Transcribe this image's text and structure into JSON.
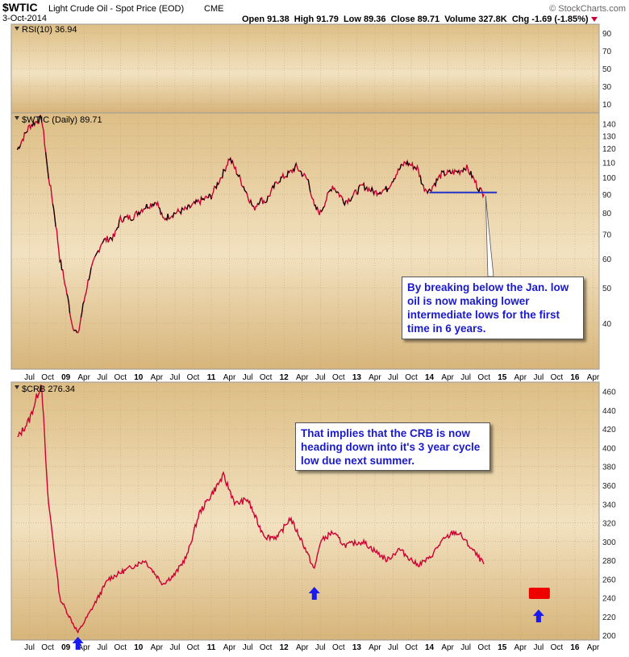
{
  "header": {
    "symbol": "$WTIC",
    "description": "Light Crude Oil - Spot Price (EOD)",
    "exchange": "CME",
    "date": "3-Oct-2014",
    "stats": "Open 91.38  High 91.79  Low 89.36  Close 89.71  Volume 327.8K  Chg -1.69 (-1.85%)",
    "credit": "© StockCharts.com"
  },
  "colors": {
    "price_line": "#cc0033",
    "dark_line": "#000000",
    "arrow": "#1a1aee",
    "box": "#ee0000",
    "support": "#2233cc"
  },
  "annotations": {
    "oil_note": "By breaking below the Jan. low oil is now making lower intermediate lows for the first time in 6 years.",
    "crb_note": "That implies that the CRB is now heading down into it's 3 year cycle low due next summer."
  },
  "chart_data": [
    {
      "type": "line",
      "panel": "rsi",
      "title": "RSI(10) 36.94",
      "last_value": 36.94,
      "ylim": [
        0,
        100
      ],
      "y_ticks": [
        10,
        30,
        50,
        70,
        90
      ],
      "series": []
    },
    {
      "type": "line",
      "panel": "price",
      "title": "$WTIC (Daily) 89.71",
      "last_value": 89.71,
      "y_scale": "log",
      "ylim": [
        30,
        150
      ],
      "y_ticks": [
        40,
        50,
        60,
        70,
        80,
        90,
        100,
        110,
        120,
        130,
        140
      ],
      "x_ticks": [
        "Jul",
        "Oct",
        "09",
        "Apr",
        "Jul",
        "Oct",
        "10",
        "Apr",
        "Jul",
        "Oct",
        "11",
        "Apr",
        "Jul",
        "Oct",
        "12",
        "Apr",
        "Jul",
        "Oct",
        "13",
        "Apr",
        "Jul",
        "Oct",
        "14",
        "Apr",
        "Jul",
        "Oct",
        "15",
        "Apr",
        "Jul",
        "Oct",
        "16",
        "Apr"
      ],
      "support_line": 91,
      "x": [
        "2008-05",
        "2008-07",
        "2008-09",
        "2008-10",
        "2008-12",
        "2009-02",
        "2009-03",
        "2009-05",
        "2009-07",
        "2009-09",
        "2009-10",
        "2009-12",
        "2010-02",
        "2010-04",
        "2010-05",
        "2010-07",
        "2010-09",
        "2010-11",
        "2011-01",
        "2011-03",
        "2011-04",
        "2011-06",
        "2011-08",
        "2011-09",
        "2011-10",
        "2011-12",
        "2012-02",
        "2012-03",
        "2012-05",
        "2012-06",
        "2012-07",
        "2012-09",
        "2012-11",
        "2012-12",
        "2013-02",
        "2013-04",
        "2013-06",
        "2013-08",
        "2013-09",
        "2013-11",
        "2013-12",
        "2014-01",
        "2014-03",
        "2014-06",
        "2014-07",
        "2014-08",
        "2014-09",
        "2014-10"
      ],
      "values": [
        119,
        138,
        145,
        104,
        60,
        40,
        37,
        55,
        67,
        69,
        77,
        78,
        83,
        86,
        77,
        80,
        82,
        86,
        89,
        103,
        113,
        97,
        82,
        87,
        86,
        98,
        103,
        107,
        98,
        83,
        80,
        95,
        86,
        88,
        95,
        91,
        93,
        105,
        110,
        106,
        94,
        92,
        102,
        104,
        107,
        101,
        94,
        90
      ]
    },
    {
      "type": "line",
      "panel": "crb",
      "title": "$CRB 276.34",
      "last_value": 276.34,
      "ylim": [
        195,
        470
      ],
      "y_ticks": [
        200,
        220,
        240,
        260,
        280,
        300,
        320,
        340,
        360,
        380,
        400,
        420,
        440,
        460
      ],
      "x_ticks": [
        "Jul",
        "Oct",
        "09",
        "Apr",
        "Jul",
        "Oct",
        "10",
        "Apr",
        "Jul",
        "Oct",
        "11",
        "Apr",
        "Jul",
        "Oct",
        "12",
        "Apr",
        "Jul",
        "Oct",
        "13",
        "Apr",
        "Jul",
        "Oct",
        "14",
        "Apr",
        "Jul",
        "Oct",
        "15",
        "Apr",
        "Jul",
        "Oct",
        "16",
        "Apr"
      ],
      "x": [
        "2008-05",
        "2008-07",
        "2008-09",
        "2008-10",
        "2008-12",
        "2009-02",
        "2009-03",
        "2009-05",
        "2009-08",
        "2009-11",
        "2010-02",
        "2010-05",
        "2010-07",
        "2010-09",
        "2010-11",
        "2011-01",
        "2011-03",
        "2011-05",
        "2011-07",
        "2011-09",
        "2011-10",
        "2011-12",
        "2012-02",
        "2012-04",
        "2012-06",
        "2012-07",
        "2012-09",
        "2012-11",
        "2013-02",
        "2013-04",
        "2013-06",
        "2013-08",
        "2013-11",
        "2014-01",
        "2014-03",
        "2014-05",
        "2014-06",
        "2014-08",
        "2014-10"
      ],
      "values": [
        410,
        430,
        470,
        350,
        240,
        215,
        203,
        225,
        260,
        270,
        280,
        255,
        265,
        285,
        330,
        350,
        370,
        340,
        345,
        315,
        305,
        305,
        325,
        300,
        270,
        300,
        310,
        296,
        300,
        290,
        280,
        292,
        275,
        282,
        300,
        310,
        308,
        292,
        276
      ],
      "markers": [
        {
          "type": "up-arrow",
          "x": "2009-03"
        },
        {
          "type": "up-arrow",
          "x": "2012-06"
        },
        {
          "type": "up-arrow",
          "x": "2015-07"
        },
        {
          "type": "box",
          "x": "2015-07"
        }
      ]
    }
  ]
}
